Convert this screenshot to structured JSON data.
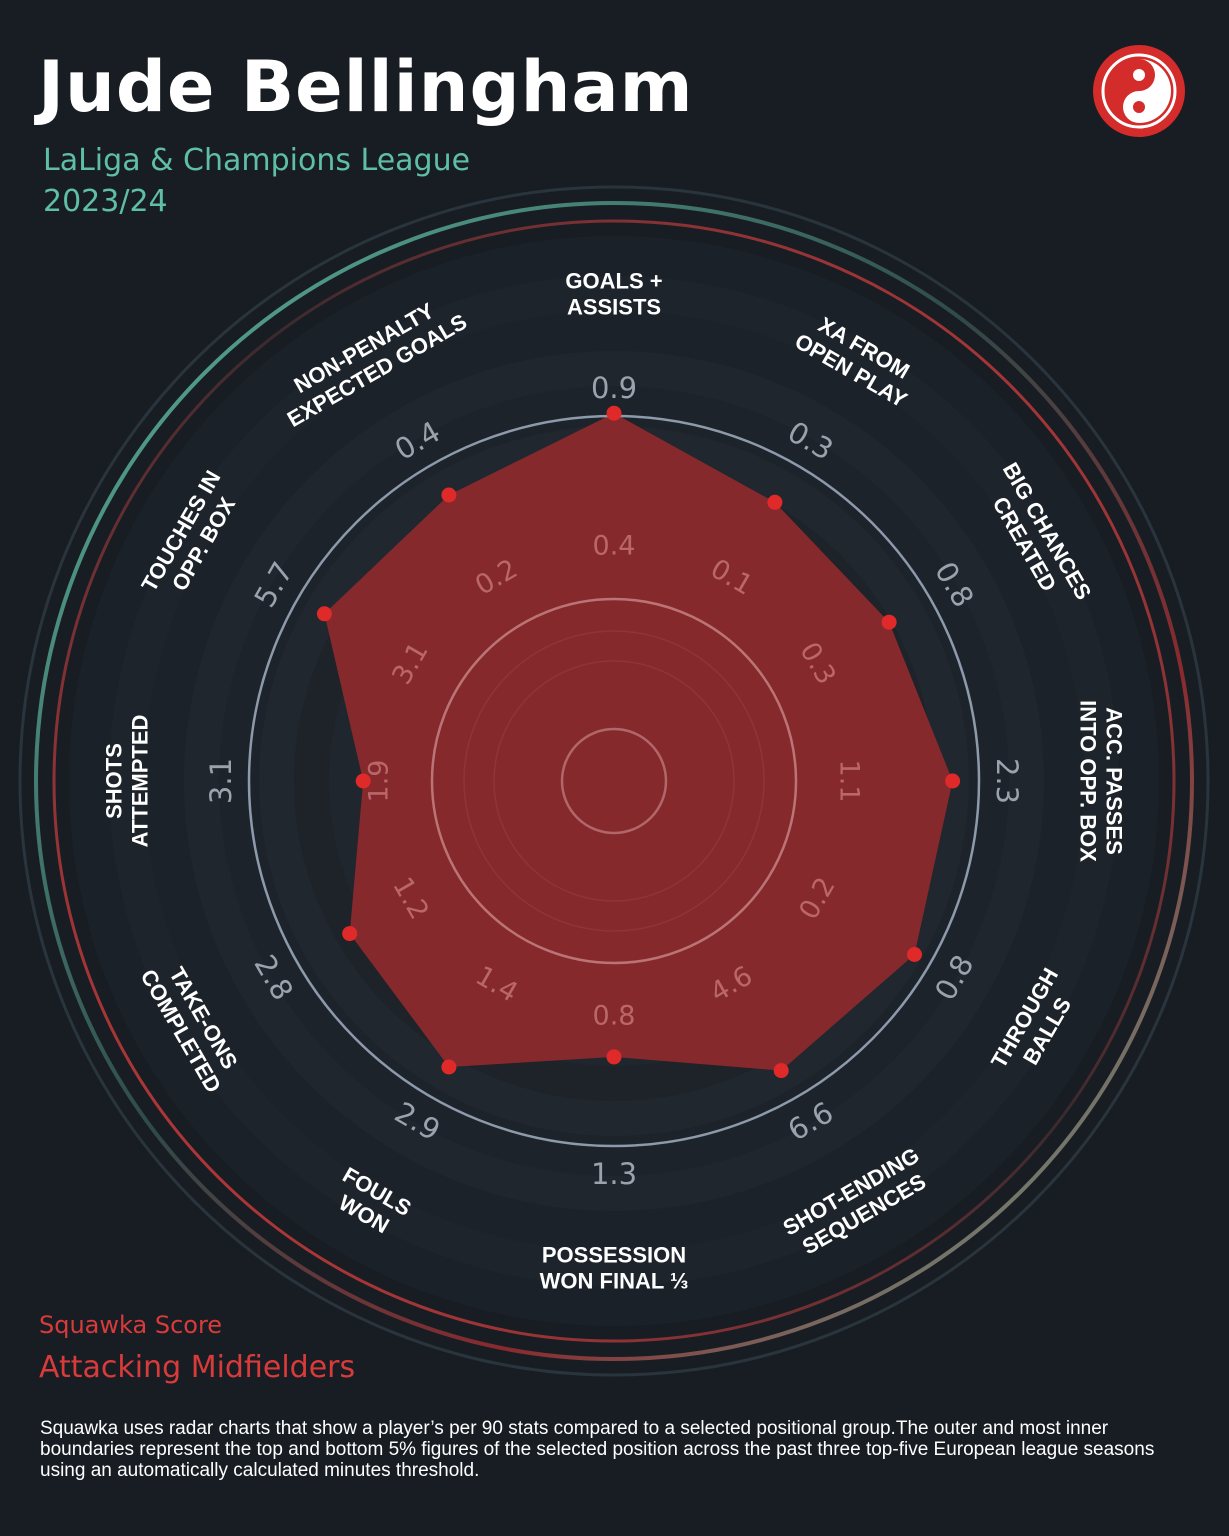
{
  "header": {
    "title": "Jude Bellingham",
    "subtitle_line1": "LaLiga & Champions League",
    "subtitle_line2": "2023/24"
  },
  "logo": {
    "icon": "squawka-logo-icon",
    "color": "#d42b2b"
  },
  "colors": {
    "accent_red": "#d93a3a",
    "accent_teal": "#5fbfa4",
    "background": "#181d24",
    "polygon": "#8e2a2d",
    "point": "#e02a2a"
  },
  "chart_data": {
    "type": "radar",
    "range": [
      0,
      100
    ],
    "series": [
      {
        "values": [
          88,
          77,
          76,
          81,
          83,
          80,
          66,
          79,
          73,
          60,
          80,
          79
        ]
      }
    ],
    "metrics": [
      {
        "label_lines": [
          "GOALS +",
          "ASSISTS"
        ],
        "outer_value": "0.9",
        "inner_value": "0.4"
      },
      {
        "label_lines": [
          "XA FROM",
          "OPEN PLAY"
        ],
        "outer_value": "0.3",
        "inner_value": "0.1"
      },
      {
        "label_lines": [
          "BIG CHANCES",
          "CREATED"
        ],
        "outer_value": "0.8",
        "inner_value": "0.3"
      },
      {
        "label_lines": [
          "ACC. PASSES",
          "INTO OPP. BOX"
        ],
        "outer_value": "2.3",
        "inner_value": "1.1"
      },
      {
        "label_lines": [
          "THROUGH",
          "BALLS"
        ],
        "outer_value": "0.8",
        "inner_value": "0.2"
      },
      {
        "label_lines": [
          "SHOT-ENDING",
          "SEQUENCES"
        ],
        "outer_value": "6.6",
        "inner_value": "4.6"
      },
      {
        "label_lines": [
          "POSSESSION",
          "WON FINAL ⅓"
        ],
        "outer_value": "1.3",
        "inner_value": "0.8"
      },
      {
        "label_lines": [
          "FOULS",
          "WON"
        ],
        "outer_value": "2.9",
        "inner_value": "1.4"
      },
      {
        "label_lines": [
          "TAKE-ONS",
          "COMPLETED"
        ],
        "outer_value": "2.8",
        "inner_value": "1.2"
      },
      {
        "label_lines": [
          "SHOTS",
          "ATTEMPTED"
        ],
        "outer_value": "3.1",
        "inner_value": "1.9"
      },
      {
        "label_lines": [
          "TOUCHES IN",
          "OPP. BOX"
        ],
        "outer_value": "5.7",
        "inner_value": "3.1"
      },
      {
        "label_lines": [
          "NON-PENALTY",
          "EXPECTED GOALS"
        ],
        "outer_value": "0.4",
        "inner_value": "0.2"
      }
    ]
  },
  "footer": {
    "score_label": "Squawka Score",
    "group_label": "Attacking Midfielders",
    "note": "Squawka uses radar charts that show a player’s per 90 stats compared to a selected positional group.The outer and most inner boundaries represent the top and bottom 5% figures of the selected position across the past three top-five European league seasons using an automatically calculated minutes threshold."
  }
}
